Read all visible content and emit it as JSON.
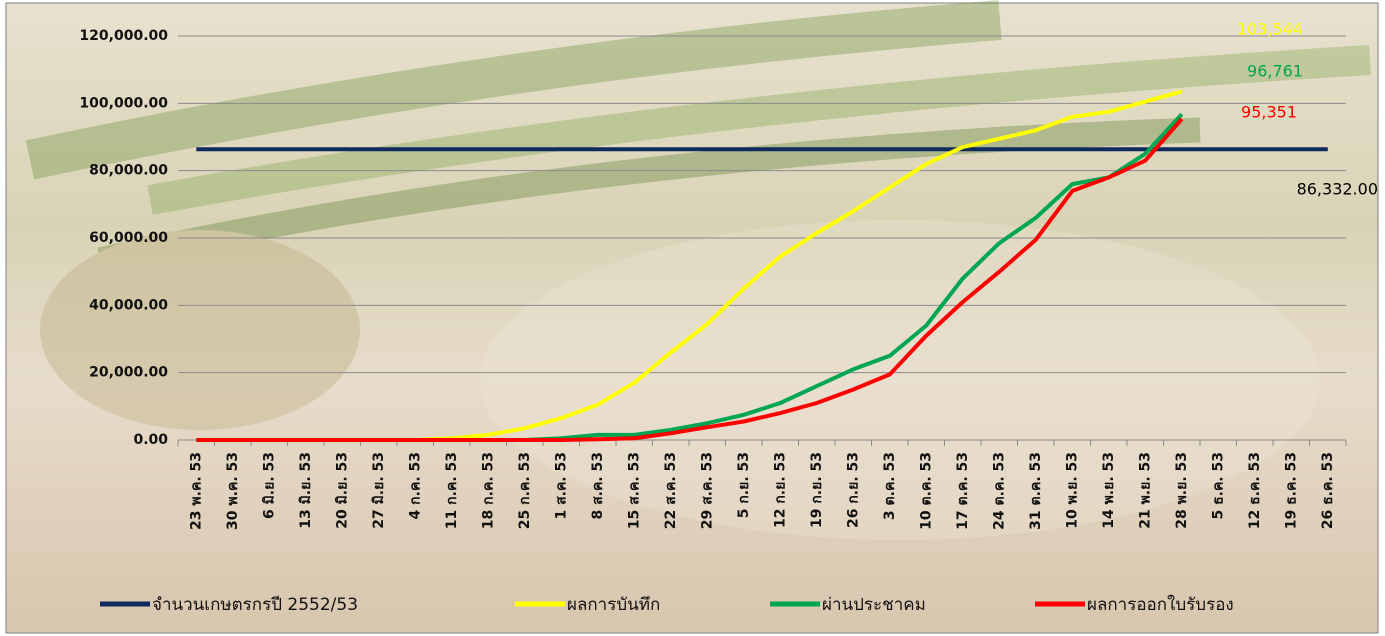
{
  "chart_data": {
    "type": "line",
    "categories": [
      "23 พ.ค. 53",
      "30 พ.ค. 53",
      "6 มิ.ย. 53",
      "13 มิ.ย. 53",
      "20 มิ.ย. 53",
      "27 มิ.ย. 53",
      "4 ก.ค. 53",
      "11 ก.ค. 53",
      "18 ก.ค. 53",
      "25 ก.ค. 53",
      "1 ส.ค. 53",
      "8 ส.ค. 53",
      "15 ส.ค. 53",
      "22 ส.ค. 53",
      "29 ส.ค. 53",
      "5 ก.ย. 53",
      "12 ก.ย. 53",
      "19 ก.ย. 53",
      "26 ก.ย. 53",
      "3 ต.ค. 53",
      "10 ต.ค. 53",
      "17 ต.ค. 53",
      "24 ต.ค. 53",
      "31 ต.ค. 53",
      "10 พ.ย. 53",
      "14 พ.ย. 53",
      "21 พ.ย. 53",
      "28 พ.ย. 53",
      "5 ธ.ค. 53",
      "12 ธ.ค. 53",
      "19 ธ.ค. 53",
      "26 ธ.ค. 53"
    ],
    "series": [
      {
        "name": "จำนวนเกษตรกรปี  2552/53",
        "color": "#0f2a5c",
        "values": [
          86332,
          86332,
          86332,
          86332,
          86332,
          86332,
          86332,
          86332,
          86332,
          86332,
          86332,
          86332,
          86332,
          86332,
          86332,
          86332,
          86332,
          86332,
          86332,
          86332,
          86332,
          86332,
          86332,
          86332,
          86332,
          86332,
          86332,
          86332,
          86332,
          86332,
          86332,
          86332
        ],
        "value_labels": [
          null,
          null,
          null,
          null,
          null,
          null,
          null,
          null,
          null,
          null,
          null,
          null,
          null,
          null,
          null,
          null,
          null,
          null,
          null,
          null,
          null,
          null,
          null,
          null,
          null,
          null,
          null,
          null,
          null,
          null,
          null,
          "86,332.00"
        ]
      },
      {
        "name": "ผลการบันทึก",
        "color": "#ffff00",
        "values": [
          0,
          0,
          0,
          0,
          0,
          0,
          0,
          500,
          1500,
          3500,
          6500,
          10500,
          17000,
          26000,
          34500,
          45000,
          54500,
          61500,
          68000,
          75000,
          82000,
          87000,
          89500,
          92000,
          96000,
          97500,
          100500,
          103544,
          null,
          null,
          null,
          null
        ],
        "value_labels": [
          null,
          null,
          null,
          null,
          null,
          null,
          null,
          null,
          null,
          null,
          null,
          null,
          null,
          null,
          null,
          null,
          null,
          null,
          null,
          null,
          null,
          null,
          null,
          null,
          null,
          null,
          null,
          "103,544",
          null,
          null,
          null,
          null
        ]
      },
      {
        "name": "ผ่านประชาคม",
        "color": "#00a651",
        "values": [
          0,
          0,
          0,
          0,
          0,
          0,
          0,
          0,
          0,
          0,
          500,
          1500,
          1500,
          3000,
          5000,
          7500,
          11000,
          16000,
          21000,
          25000,
          34000,
          48000,
          58500,
          66000,
          76000,
          78000,
          85000,
          96761,
          null,
          null,
          null,
          null
        ],
        "value_labels": [
          null,
          null,
          null,
          null,
          null,
          null,
          null,
          null,
          null,
          null,
          null,
          null,
          null,
          null,
          null,
          null,
          null,
          null,
          null,
          null,
          null,
          null,
          null,
          null,
          null,
          null,
          null,
          "96,761",
          null,
          null,
          null,
          null
        ]
      },
      {
        "name": "ผลการออกใบรับรอง",
        "color": "#ff0000",
        "values": [
          0,
          0,
          0,
          0,
          0,
          0,
          0,
          0,
          0,
          0,
          0,
          200,
          500,
          2000,
          3800,
          5500,
          8000,
          11000,
          15000,
          19500,
          31000,
          41000,
          50000,
          59500,
          74000,
          78000,
          83000,
          95351,
          null,
          null,
          null,
          null
        ],
        "value_labels": [
          null,
          null,
          null,
          null,
          null,
          null,
          null,
          null,
          null,
          null,
          null,
          null,
          null,
          null,
          null,
          null,
          null,
          null,
          null,
          null,
          null,
          null,
          null,
          null,
          null,
          null,
          null,
          "95,351",
          null,
          null,
          null,
          null
        ]
      }
    ],
    "ylim": [
      0,
      120000
    ],
    "yticks": [
      {
        "value": 0,
        "label": "0.00"
      },
      {
        "value": 20000,
        "label": "20,000.00"
      },
      {
        "value": 40000,
        "label": "40,000.00"
      },
      {
        "value": 60000,
        "label": "60,000.00"
      },
      {
        "value": 80000,
        "label": "80,000.00"
      },
      {
        "value": 100000,
        "label": "100,000.00"
      },
      {
        "value": 120000,
        "label": "120,000.00"
      }
    ],
    "grid": true,
    "legend": "bottom"
  }
}
